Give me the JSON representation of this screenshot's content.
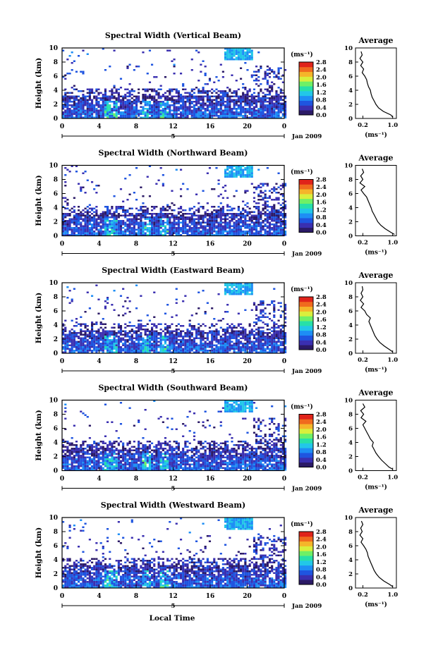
{
  "figure": {
    "xlabel": "Local Time",
    "ylabel": "Height (km)",
    "avg_title": "Average",
    "avg_xlabel": "(ms⁻¹)",
    "cb_unit": "(ms⁻¹)",
    "date_label": "Jan 2009",
    "day_label": "5",
    "colors": {
      "scale": [
        "#2b1a66",
        "#3a2fb0",
        "#1f55e0",
        "#1e8ef5",
        "#22c7e8",
        "#27e0a8",
        "#6ff066",
        "#d9ef3c",
        "#f5b52a",
        "#f06a1e",
        "#e0231a"
      ],
      "line": "#000000"
    }
  },
  "chart_data": [
    {
      "type": "heatmap",
      "title": "Spectral Width (Vertical Beam)",
      "x_ticks": [
        "0",
        "4",
        "8",
        "12",
        "16",
        "20",
        "0"
      ],
      "y_ticks": [
        "0",
        "2",
        "4",
        "6",
        "8",
        "10"
      ],
      "xlim": [
        0,
        24
      ],
      "ylim": [
        0,
        10
      ],
      "colorbar": {
        "ticks": [
          "0.0",
          "0.4",
          "0.8",
          "1.2",
          "1.6",
          "2.0",
          "2.4",
          "2.8"
        ],
        "range": [
          0,
          2.8
        ]
      },
      "average_profile": {
        "x_ticks": [
          "0.2",
          "1.0"
        ],
        "xlim": [
          0,
          1.1
        ],
        "y_ticks": [
          "0",
          "2",
          "4",
          "6",
          "8",
          "10"
        ],
        "height": [
          0.2,
          0.5,
          1,
          1.5,
          2,
          2.5,
          3,
          3.5,
          4,
          4.5,
          5,
          5.5,
          6,
          6.5,
          7,
          7.5,
          8,
          8.5,
          9,
          9.5
        ],
        "width": [
          1.0,
          0.95,
          0.75,
          0.62,
          0.55,
          0.5,
          0.45,
          0.42,
          0.4,
          0.35,
          0.32,
          0.3,
          0.25,
          0.18,
          0.22,
          0.14,
          0.2,
          0.12,
          0.18,
          0.15
        ]
      }
    },
    {
      "type": "heatmap",
      "title": "Spectral Width (Northward Beam)",
      "x_ticks": [
        "0",
        "4",
        "8",
        "12",
        "16",
        "20",
        "0"
      ],
      "y_ticks": [
        "0",
        "2",
        "4",
        "6",
        "8",
        "10"
      ],
      "xlim": [
        0,
        24
      ],
      "ylim": [
        0,
        10
      ],
      "colorbar": {
        "ticks": [
          "0.0",
          "0.4",
          "0.8",
          "1.2",
          "1.6",
          "2.0",
          "2.4",
          "2.8"
        ],
        "range": [
          0,
          2.8
        ]
      },
      "average_profile": {
        "x_ticks": [
          "0.2",
          "1.0"
        ],
        "xlim": [
          0,
          1.1
        ],
        "y_ticks": [
          "0",
          "2",
          "4",
          "6",
          "8",
          "10"
        ],
        "height": [
          0.2,
          0.5,
          1,
          1.5,
          2,
          2.5,
          3,
          3.5,
          4,
          4.5,
          5,
          5.5,
          6,
          6.5,
          7,
          7.5,
          8,
          8.5,
          9,
          9.5
        ],
        "width": [
          1.05,
          0.95,
          0.8,
          0.68,
          0.6,
          0.55,
          0.5,
          0.45,
          0.42,
          0.38,
          0.34,
          0.3,
          0.22,
          0.15,
          0.25,
          0.12,
          0.2,
          0.14,
          0.22,
          0.18
        ]
      }
    },
    {
      "type": "heatmap",
      "title": "Spectral Width (Eastward Beam)",
      "x_ticks": [
        "0",
        "4",
        "8",
        "12",
        "16",
        "20",
        "0"
      ],
      "y_ticks": [
        "0",
        "2",
        "4",
        "6",
        "8",
        "10"
      ],
      "xlim": [
        0,
        24
      ],
      "ylim": [
        0,
        10
      ],
      "colorbar": {
        "ticks": [
          "0.0",
          "0.4",
          "0.8",
          "1.2",
          "1.6",
          "2.0",
          "2.4",
          "2.8"
        ],
        "range": [
          0,
          2.8
        ]
      },
      "average_profile": {
        "x_ticks": [
          "0.2",
          "1.0"
        ],
        "xlim": [
          0,
          1.1
        ],
        "y_ticks": [
          "0",
          "2",
          "4",
          "6",
          "8",
          "10"
        ],
        "height": [
          0.2,
          0.5,
          1,
          1.5,
          2,
          2.5,
          3,
          3.5,
          4,
          4.5,
          5,
          5.5,
          6,
          6.5,
          7,
          7.5,
          8,
          8.5,
          9,
          9.5
        ],
        "width": [
          1.0,
          0.92,
          0.78,
          0.66,
          0.58,
          0.52,
          0.48,
          0.44,
          0.4,
          0.36,
          0.4,
          0.3,
          0.25,
          0.15,
          0.22,
          0.13,
          0.2,
          0.15,
          0.2,
          0.18
        ]
      }
    },
    {
      "type": "heatmap",
      "title": "Spectral Width (Southward Beam)",
      "x_ticks": [
        "0",
        "4",
        "8",
        "12",
        "16",
        "20",
        "0"
      ],
      "y_ticks": [
        "0",
        "2",
        "4",
        "6",
        "8",
        "10"
      ],
      "xlim": [
        0,
        24
      ],
      "ylim": [
        0,
        10
      ],
      "colorbar": {
        "ticks": [
          "0.0",
          "0.4",
          "0.8",
          "1.2",
          "1.6",
          "2.0",
          "2.4",
          "2.8"
        ],
        "range": [
          0,
          2.8
        ]
      },
      "average_profile": {
        "x_ticks": [
          "0.2",
          "1.0"
        ],
        "xlim": [
          0,
          1.1
        ],
        "y_ticks": [
          "0",
          "2",
          "4",
          "6",
          "8",
          "10"
        ],
        "height": [
          0.2,
          0.5,
          1,
          1.5,
          2,
          2.5,
          3,
          3.5,
          4,
          4.5,
          5,
          5.5,
          6,
          6.5,
          7,
          7.5,
          8,
          8.5,
          9,
          9.5
        ],
        "width": [
          1.0,
          0.9,
          0.8,
          0.7,
          0.62,
          0.55,
          0.5,
          0.45,
          0.48,
          0.4,
          0.35,
          0.3,
          0.25,
          0.2,
          0.28,
          0.15,
          0.22,
          0.14,
          0.25,
          0.2
        ]
      }
    },
    {
      "type": "heatmap",
      "title": "Spectral Width (Westward Beam)",
      "x_ticks": [
        "0",
        "4",
        "8",
        "12",
        "16",
        "20",
        "0"
      ],
      "y_ticks": [
        "0",
        "2",
        "4",
        "6",
        "8",
        "10"
      ],
      "xlim": [
        0,
        24
      ],
      "ylim": [
        0,
        10
      ],
      "colorbar": {
        "ticks": [
          "0.0",
          "0.4",
          "0.8",
          "1.2",
          "1.6",
          "2.0",
          "2.4",
          "2.8"
        ],
        "range": [
          0,
          2.8
        ]
      },
      "average_profile": {
        "x_ticks": [
          "0.2",
          "1.0"
        ],
        "xlim": [
          0,
          1.1
        ],
        "y_ticks": [
          "0",
          "2",
          "4",
          "6",
          "8",
          "10"
        ],
        "height": [
          0.2,
          0.5,
          1,
          1.5,
          2,
          2.5,
          3,
          3.5,
          4,
          4.5,
          5,
          5.5,
          6,
          6.5,
          7,
          7.5,
          8,
          8.5,
          9,
          9.5
        ],
        "width": [
          1.0,
          0.92,
          0.76,
          0.64,
          0.56,
          0.5,
          0.46,
          0.42,
          0.38,
          0.34,
          0.32,
          0.28,
          0.22,
          0.15,
          0.2,
          0.12,
          0.18,
          0.14,
          0.2,
          0.16
        ]
      }
    }
  ]
}
